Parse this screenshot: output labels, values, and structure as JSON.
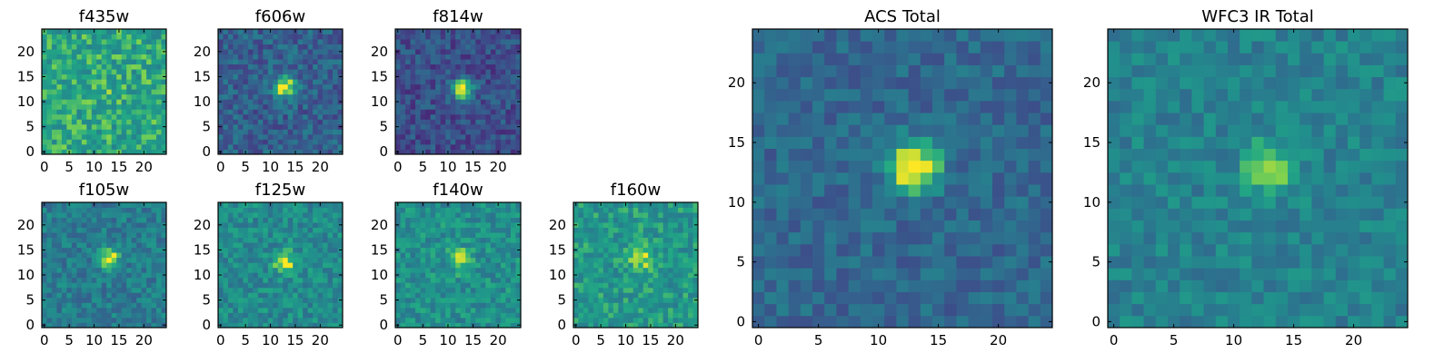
{
  "chart_data": [
    {
      "type": "heatmap",
      "title": "f435w",
      "colormap": "viridis",
      "grid_size": [
        25,
        25
      ],
      "blob_center": [
        13,
        12.5
      ],
      "blob_strength": 0.05,
      "background_level": 0.72,
      "noise_level": 0.17,
      "seed": 3,
      "xticks": [
        "0",
        "5",
        "10",
        "15",
        "20"
      ],
      "yticks": [
        "0",
        "5",
        "10",
        "15",
        "20"
      ],
      "xlim": [
        -0.5,
        24.5
      ],
      "ylim": [
        -0.5,
        24.5
      ]
    },
    {
      "type": "heatmap",
      "title": "f606w",
      "colormap": "viridis",
      "grid_size": [
        25,
        25
      ],
      "blob_center": [
        13,
        13
      ],
      "blob_strength": 0.7,
      "background_level": 0.38,
      "noise_level": 0.16,
      "seed": 7,
      "xticks": [
        "0",
        "5",
        "10",
        "15",
        "20"
      ],
      "yticks": [
        "0",
        "5",
        "10",
        "15",
        "20"
      ],
      "xlim": [
        -0.5,
        24.5
      ],
      "ylim": [
        -0.5,
        24.5
      ]
    },
    {
      "type": "heatmap",
      "title": "f814w",
      "colormap": "viridis",
      "grid_size": [
        25,
        25
      ],
      "blob_center": [
        13,
        12.5
      ],
      "blob_strength": 0.75,
      "background_level": 0.3,
      "noise_level": 0.15,
      "seed": 11,
      "xticks": [
        "0",
        "5",
        "10",
        "15",
        "20"
      ],
      "yticks": [
        "0",
        "5",
        "10",
        "15",
        "20"
      ],
      "xlim": [
        -0.5,
        24.5
      ],
      "ylim": [
        -0.5,
        24.5
      ]
    },
    {
      "type": "heatmap",
      "title": "f105w",
      "colormap": "viridis",
      "grid_size": [
        25,
        25
      ],
      "blob_center": [
        13,
        13.5
      ],
      "blob_strength": 0.45,
      "background_level": 0.52,
      "noise_level": 0.14,
      "seed": 17,
      "xticks": [
        "0",
        "5",
        "10",
        "15",
        "20"
      ],
      "yticks": [
        "0",
        "5",
        "10",
        "15",
        "20"
      ],
      "xlim": [
        -0.5,
        24.5
      ],
      "ylim": [
        -0.5,
        24.5
      ]
    },
    {
      "type": "heatmap",
      "title": "f125w",
      "colormap": "viridis",
      "grid_size": [
        25,
        25
      ],
      "blob_center": [
        13,
        12.5
      ],
      "blob_strength": 0.4,
      "background_level": 0.6,
      "noise_level": 0.15,
      "seed": 23,
      "xticks": [
        "0",
        "5",
        "10",
        "15",
        "20"
      ],
      "yticks": [
        "0",
        "5",
        "10",
        "15",
        "20"
      ],
      "xlim": [
        -0.5,
        24.5
      ],
      "ylim": [
        -0.5,
        24.5
      ]
    },
    {
      "type": "heatmap",
      "title": "f140w",
      "colormap": "viridis",
      "grid_size": [
        25,
        25
      ],
      "blob_center": [
        12.5,
        13
      ],
      "blob_strength": 0.35,
      "background_level": 0.62,
      "noise_level": 0.15,
      "seed": 29,
      "xticks": [
        "0",
        "5",
        "10",
        "15",
        "20"
      ],
      "yticks": [
        "0",
        "5",
        "10",
        "15",
        "20"
      ],
      "xlim": [
        -0.5,
        24.5
      ],
      "ylim": [
        -0.5,
        24.5
      ]
    },
    {
      "type": "heatmap",
      "title": "f160w",
      "colormap": "viridis",
      "grid_size": [
        25,
        25
      ],
      "blob_center": [
        13,
        13.5
      ],
      "blob_strength": 0.35,
      "background_level": 0.66,
      "noise_level": 0.15,
      "seed": 31,
      "xticks": [
        "0",
        "5",
        "10",
        "15",
        "20"
      ],
      "yticks": [
        "0",
        "5",
        "10",
        "15",
        "20"
      ],
      "xlim": [
        -0.5,
        24.5
      ],
      "ylim": [
        -0.5,
        24.5
      ]
    },
    {
      "type": "heatmap",
      "title": "ACS Total",
      "colormap": "viridis",
      "grid_size": [
        25,
        25
      ],
      "blob_center": [
        13,
        13
      ],
      "blob_strength": 0.7,
      "background_level": 0.42,
      "noise_level": 0.12,
      "seed": 37,
      "xticks": [
        "0",
        "5",
        "10",
        "15",
        "20"
      ],
      "yticks": [
        "0",
        "5",
        "10",
        "15",
        "20"
      ],
      "xlim": [
        -0.5,
        24.5
      ],
      "ylim": [
        -0.5,
        24.5
      ]
    },
    {
      "type": "heatmap",
      "title": "WFC3 IR Total",
      "colormap": "viridis",
      "grid_size": [
        25,
        25
      ],
      "blob_center": [
        13,
        13
      ],
      "blob_strength": 0.4,
      "background_level": 0.55,
      "noise_level": 0.12,
      "seed": 41,
      "xticks": [
        "0",
        "5",
        "10",
        "15",
        "20"
      ],
      "yticks": [
        "0",
        "5",
        "10",
        "15",
        "20"
      ],
      "xlim": [
        -0.5,
        24.5
      ],
      "ylim": [
        -0.5,
        24.5
      ]
    }
  ]
}
